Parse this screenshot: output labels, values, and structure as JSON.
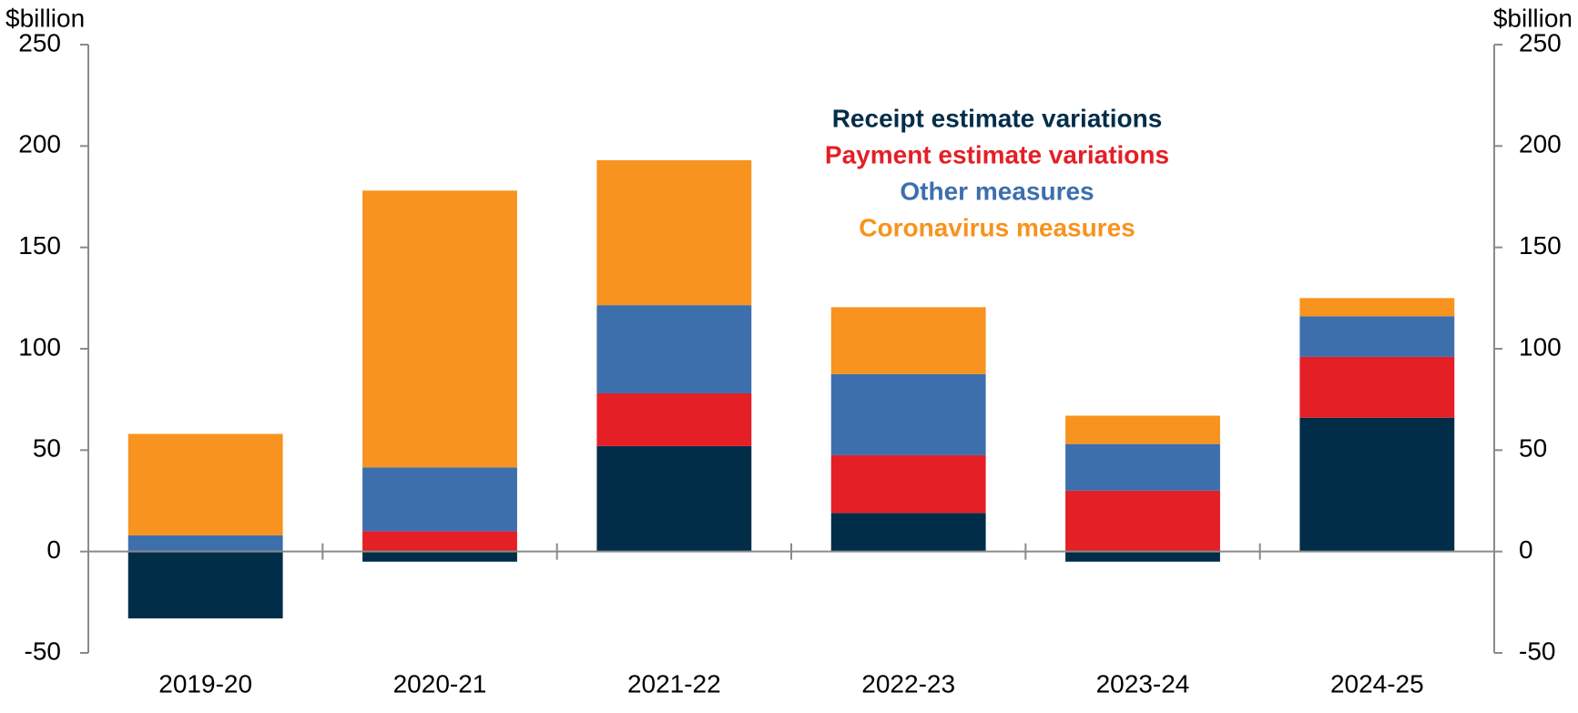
{
  "chart_data": {
    "type": "stacked_bar",
    "y_label": "$billion",
    "y2_label": "$billion",
    "categories": [
      "2019-20",
      "2020-21",
      "2021-22",
      "2022-23",
      "2023-24",
      "2024-25"
    ],
    "series": [
      {
        "name": "Receipt estimate variations",
        "color": "#022d49",
        "values": [
          -33,
          -5,
          52,
          19,
          -5,
          66
        ]
      },
      {
        "name": "Payment estimate variations",
        "color": "#e41f26",
        "values": [
          0,
          10,
          26,
          28.5,
          30,
          30
        ]
      },
      {
        "name": "Other measures",
        "color": "#3d6fad",
        "values": [
          8,
          31.5,
          43.5,
          40,
          23,
          20
        ]
      },
      {
        "name": "Coronavirus measures",
        "color": "#f7931e",
        "values": [
          50,
          136.5,
          71.5,
          33,
          14,
          9
        ]
      }
    ],
    "ylim": [
      -50,
      250
    ],
    "yticks": [
      -50,
      0,
      50,
      100,
      150,
      200,
      250
    ],
    "y2lim": [
      -50,
      250
    ],
    "y2ticks": [
      -50,
      0,
      50,
      100,
      150,
      200,
      250
    ],
    "grid": false,
    "legend": "top"
  }
}
